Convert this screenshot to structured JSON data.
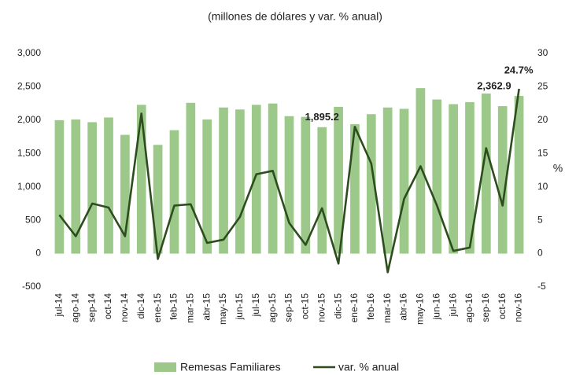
{
  "chart_data": {
    "type": "bar-line",
    "subtitle": "(millones de dólares y var. % anual)",
    "categories": [
      "jul-14",
      "ago-14",
      "sep-14",
      "oct-14",
      "nov-14",
      "dic-14",
      "ene-15",
      "feb-15",
      "mar-15",
      "abr-15",
      "may-15",
      "jun-15",
      "jul-15",
      "ago-15",
      "sep-15",
      "oct-15",
      "nov-15",
      "dic-15",
      "ene-16",
      "feb-16",
      "mar-16",
      "abr-16",
      "may-16",
      "jun-16",
      "jul-16",
      "ago-16",
      "sep-16",
      "oct-16",
      "nov-16"
    ],
    "series": [
      {
        "name": "Remesas Familiares",
        "type": "bar",
        "color": "#9cc98a",
        "values": [
          2000,
          2010,
          1970,
          2040,
          1780,
          2230,
          1630,
          1850,
          2260,
          2010,
          2190,
          2160,
          2230,
          2250,
          2060,
          2050,
          1895.2,
          2200,
          1940,
          2090,
          2190,
          2170,
          2480,
          2310,
          2240,
          2270,
          2400,
          2210,
          2362.9
        ],
        "value_labels": [
          null,
          null,
          null,
          null,
          null,
          null,
          null,
          null,
          null,
          null,
          null,
          null,
          null,
          null,
          null,
          null,
          "1,895.2",
          null,
          null,
          null,
          null,
          null,
          null,
          null,
          null,
          null,
          null,
          null,
          "2,362.9"
        ]
      },
      {
        "name": "var. % anual",
        "type": "line",
        "axis": "y2",
        "color": "#2e4d1f",
        "values": [
          5.8,
          2.6,
          7.5,
          6.9,
          2.6,
          21,
          -0.8,
          7.2,
          7.4,
          1.6,
          2.1,
          5.5,
          11.9,
          12.4,
          4.6,
          1.3,
          6.8,
          -1.5,
          19,
          13.5,
          -2.8,
          8.2,
          13.1,
          7.2,
          0.4,
          0.9,
          15.8,
          7.2,
          24.7
        ],
        "value_labels": [
          null,
          null,
          null,
          null,
          null,
          null,
          null,
          null,
          null,
          null,
          null,
          null,
          null,
          null,
          null,
          null,
          null,
          null,
          null,
          null,
          null,
          null,
          null,
          null,
          null,
          null,
          null,
          null,
          "24.7%"
        ]
      }
    ],
    "ylim": [
      -500,
      3000
    ],
    "yticks": [
      -500,
      0,
      500,
      {
        "value": 1000,
        "label": "1,000"
      },
      {
        "value": 1500,
        "label": "1,500"
      },
      {
        "value": 2000,
        "label": "2,000"
      },
      {
        "value": 2500,
        "label": "2,500"
      },
      {
        "value": 3000,
        "label": "3,000"
      }
    ],
    "y2lim": [
      -5,
      30
    ],
    "y2ticks": [
      -5,
      0,
      5,
      10,
      15,
      20,
      25,
      30
    ],
    "y2label": "%"
  }
}
